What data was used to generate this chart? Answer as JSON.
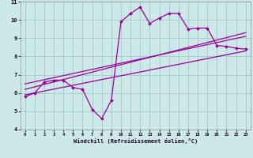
{
  "xlabel": "Windchill (Refroidissement éolien,°C)",
  "bg_color": "#cce8e8",
  "grid_color": "#aacccc",
  "line_color": "#990099",
  "xlim": [
    -0.5,
    23.5
  ],
  "ylim": [
    4,
    11
  ],
  "xticks": [
    0,
    1,
    2,
    3,
    4,
    5,
    6,
    7,
    8,
    9,
    10,
    11,
    12,
    13,
    14,
    15,
    16,
    17,
    18,
    19,
    20,
    21,
    22,
    23
  ],
  "yticks": [
    4,
    5,
    6,
    7,
    8,
    9,
    10,
    11
  ],
  "main_series_x": [
    0,
    1,
    2,
    3,
    4,
    5,
    6,
    7,
    8,
    9,
    10,
    11,
    12,
    13,
    14,
    15,
    16,
    17,
    18,
    19,
    20,
    21,
    22,
    23
  ],
  "main_series_y": [
    5.8,
    6.0,
    6.6,
    6.7,
    6.7,
    6.3,
    6.2,
    5.1,
    4.6,
    5.6,
    9.9,
    10.35,
    10.7,
    9.8,
    10.1,
    10.35,
    10.35,
    9.5,
    9.55,
    9.55,
    8.6,
    8.55,
    8.45,
    8.4
  ],
  "line1_x": [
    0,
    23
  ],
  "line1_y": [
    6.5,
    9.1
  ],
  "line2_x": [
    0,
    23
  ],
  "line2_y": [
    6.2,
    9.3
  ],
  "line3_x": [
    0,
    23
  ],
  "line3_y": [
    5.9,
    8.3
  ]
}
